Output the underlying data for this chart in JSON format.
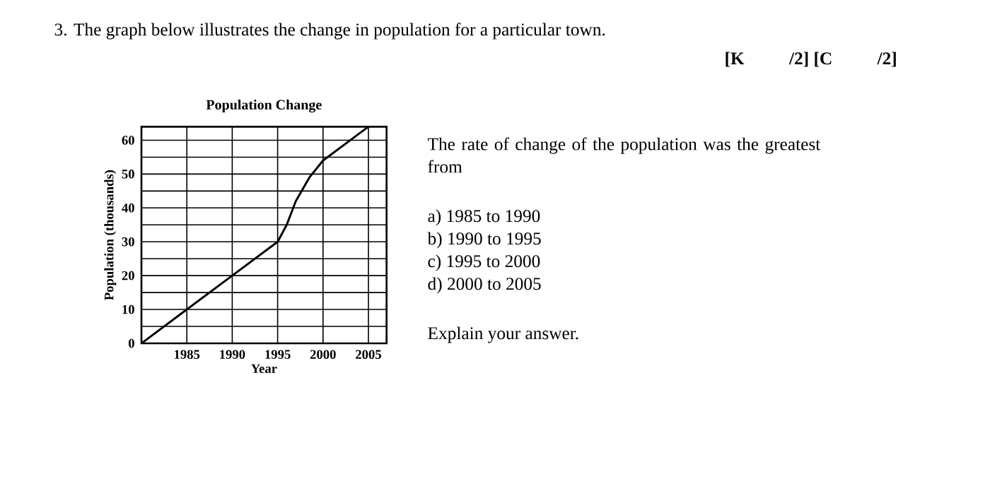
{
  "chart_data": {
    "type": "line",
    "title": "Population Change",
    "xlabel": "Year",
    "ylabel": "Population (thousands)",
    "x": [
      1980,
      1985,
      1990,
      1995,
      1996,
      1997,
      1998.5,
      2000,
      2005
    ],
    "series": [
      {
        "color": "#000000",
        "values": [
          0,
          10,
          20,
          30,
          35,
          42,
          49,
          54,
          64
        ]
      }
    ],
    "xlim": [
      1980,
      2007
    ],
    "ylim": [
      0,
      64
    ],
    "xticks": [
      1985,
      1990,
      1995,
      2000,
      2005
    ],
    "yticks": [
      0,
      {
        "value": 5,
        "label": null
      },
      10,
      {
        "value": 15,
        "label": null
      },
      20,
      {
        "value": 25,
        "label": null
      },
      30,
      {
        "value": 35,
        "label": null
      },
      40,
      {
        "value": 45,
        "label": null
      },
      50,
      {
        "value": 55,
        "label": null
      },
      60
    ],
    "grid": true,
    "marker": "none",
    "line_style": "solid",
    "annotations": [
      "3. The graph below illustrates the change in population for a particular town.",
      "[K          /2] [C          /2]",
      "The rate of change of the population was the greatest from",
      "a) 1985 to 1990",
      "b) 1990 to 1995",
      "c) 1995 to 2000",
      "d) 2000 to 2005",
      "Explain your answer."
    ]
  }
}
